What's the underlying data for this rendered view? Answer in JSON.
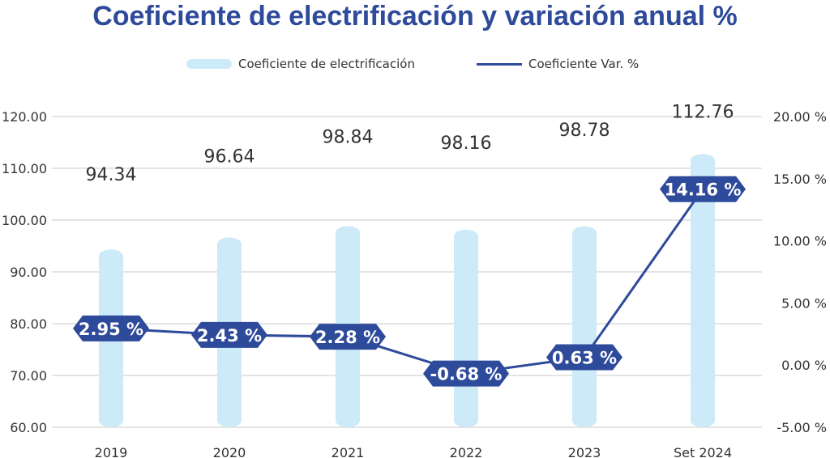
{
  "title": "Coeficiente de electrificación y variación anual %",
  "legend": {
    "bar_label": "Coeficiente de electrificación",
    "line_label": "Coeficiente Var. %"
  },
  "colors": {
    "title": "#2e4a9a",
    "bar": "#cdeaf9",
    "line": "#2e4a9a",
    "grid": "#d4d4d4"
  },
  "chart_data": {
    "type": "bar",
    "title": "Coeficiente de electrificación y variación anual %",
    "categories": [
      "2019",
      "2020",
      "2021",
      "2022",
      "2023",
      "Set 2024"
    ],
    "series": [
      {
        "name": "Coeficiente de electrificación",
        "type": "bar",
        "axis": "left",
        "values": [
          94.34,
          96.64,
          98.84,
          98.16,
          98.78,
          112.76
        ]
      },
      {
        "name": "Coeficiente Var. %",
        "type": "line",
        "axis": "right",
        "values": [
          2.95,
          2.43,
          2.28,
          -0.68,
          0.63,
          14.16
        ]
      }
    ],
    "value_labels": [
      "94.34",
      "96.64",
      "98.84",
      "98.16",
      "98.78",
      "112.76"
    ],
    "pct_labels": [
      "2.95 %",
      "2.43 %",
      "2.28 %",
      "-0.68 %",
      "0.63 %",
      "14.16 %"
    ],
    "y_left": {
      "ylim": [
        60,
        120
      ],
      "ticks": [
        "60.00",
        "70.00",
        "80.00",
        "90.00",
        "100.00",
        "110.00",
        "120.00"
      ]
    },
    "y_right": {
      "ylim": [
        -5,
        20
      ],
      "ticks": [
        "-5.00 %",
        "0.00 %",
        "5.00 %",
        "10.00 %",
        "15.00 %",
        "20.00 %"
      ]
    },
    "grid": true,
    "legend_position": "top"
  }
}
